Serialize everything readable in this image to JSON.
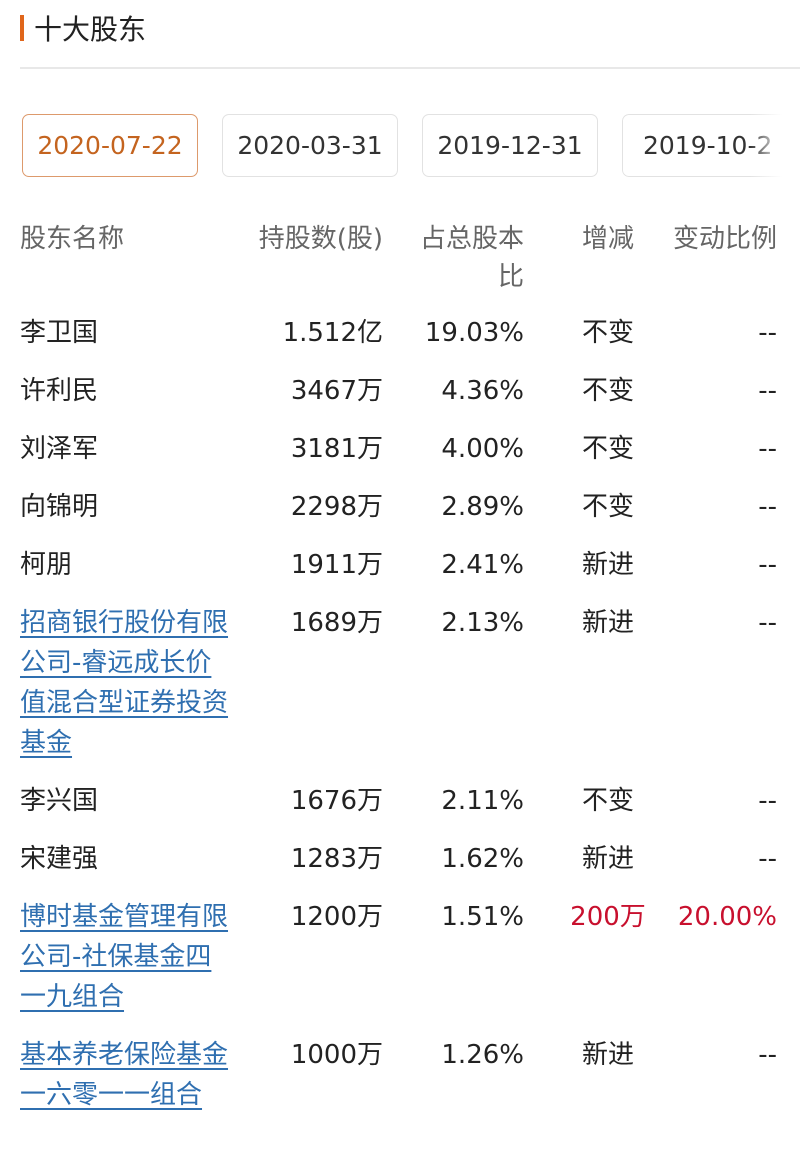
{
  "section_title": "十大股东",
  "accent_color": "#e0661b",
  "tabs": [
    {
      "label": "2020-07-22",
      "active": true
    },
    {
      "label": "2020-03-31",
      "active": false
    },
    {
      "label": "2019-12-31",
      "active": false
    },
    {
      "label": "2019-10-2",
      "active": false
    }
  ],
  "table": {
    "headers": [
      "股东名称",
      "持股数(股)",
      "占总股本比",
      "增减",
      "变动比例"
    ],
    "rows": [
      {
        "name": "李卫国",
        "shares": "1.512亿",
        "pct": "19.03%",
        "change": "不变",
        "ratio": "--",
        "link": false
      },
      {
        "name": "许利民",
        "shares": "3467万",
        "pct": "4.36%",
        "change": "不变",
        "ratio": "--",
        "link": false
      },
      {
        "name": "刘泽军",
        "shares": "3181万",
        "pct": "4.00%",
        "change": "不变",
        "ratio": "--",
        "link": false
      },
      {
        "name": "向锦明",
        "shares": "2298万",
        "pct": "2.89%",
        "change": "不变",
        "ratio": "--",
        "link": false
      },
      {
        "name": "柯朋",
        "shares": "1911万",
        "pct": "2.41%",
        "change": "新进",
        "ratio": "--",
        "link": false
      },
      {
        "name": "招商银行股份有限公司-睿远成长价值混合型证券投资基金",
        "shares": "1689万",
        "pct": "2.13%",
        "change": "新进",
        "ratio": "--",
        "link": true
      },
      {
        "name": "李兴国",
        "shares": "1676万",
        "pct": "2.11%",
        "change": "不变",
        "ratio": "--",
        "link": false
      },
      {
        "name": "宋建强",
        "shares": "1283万",
        "pct": "1.62%",
        "change": "新进",
        "ratio": "--",
        "link": false
      },
      {
        "name": "博时基金管理有限公司-社保基金四一九组合",
        "shares": "1200万",
        "pct": "1.51%",
        "change": "200万",
        "ratio": "20.00%",
        "link": true,
        "highlight": true
      },
      {
        "name": "基本养老保险基金一六零一一组合",
        "shares": "1000万",
        "pct": "1.26%",
        "change": "新进",
        "ratio": "--",
        "link": true
      }
    ]
  }
}
